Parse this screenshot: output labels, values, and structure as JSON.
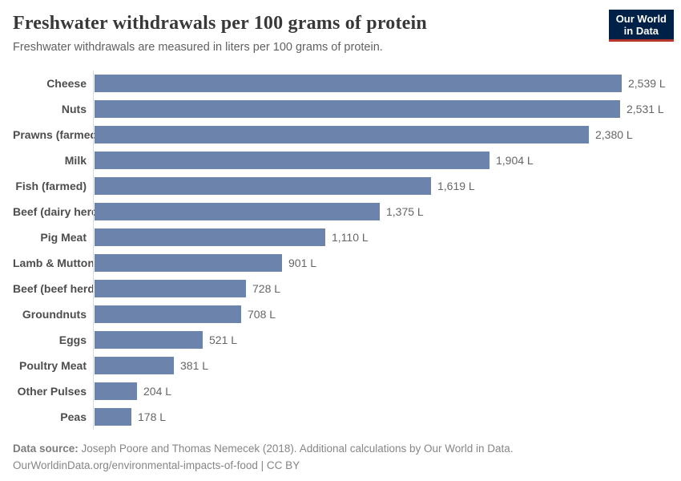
{
  "header": {
    "title": "Freshwater withdrawals per 100 grams of protein",
    "subtitle": "Freshwater withdrawals are measured in liters per 100 grams of protein.",
    "logo": {
      "line1": "Our World",
      "line2": "in Data"
    }
  },
  "chart_data": {
    "type": "bar",
    "orientation": "horizontal",
    "title": "Freshwater withdrawals per 100 grams of protein",
    "xlabel": "",
    "ylabel": "",
    "unit": "liters per 100 grams of protein",
    "grid": false,
    "legend_position": "none",
    "xlim": [
      0,
      2539
    ],
    "categories": [
      "Cheese",
      "Nuts",
      "Prawns (farmed)",
      "Milk",
      "Fish (farmed)",
      "Beef (dairy herd)",
      "Pig Meat",
      "Lamb & Mutton",
      "Beef (beef herd)",
      "Groundnuts",
      "Eggs",
      "Poultry Meat",
      "Other Pulses",
      "Peas"
    ],
    "values": [
      2539,
      2531,
      2380,
      1904,
      1619,
      1375,
      1110,
      901,
      728,
      708,
      521,
      381,
      204,
      178
    ],
    "value_labels": [
      "2,539 L",
      "2,531 L",
      "2,380 L",
      "1,904 L",
      "1,619 L",
      "1,375 L",
      "1,110 L",
      "901 L",
      "728 L",
      "708 L",
      "521 L",
      "381 L",
      "204 L",
      "178 L"
    ]
  },
  "colors": {
    "bar": "#6c84ac",
    "axis_line": "#dcdcdc",
    "logo_bg": "#002147",
    "logo_accent": "#b5382f"
  },
  "footer": {
    "source_label": "Data source:",
    "source_text": " Joseph Poore and Thomas Nemecek (2018). Additional calculations by Our World in Data.",
    "link_line": "OurWorldinData.org/environmental-impacts-of-food | CC BY"
  }
}
